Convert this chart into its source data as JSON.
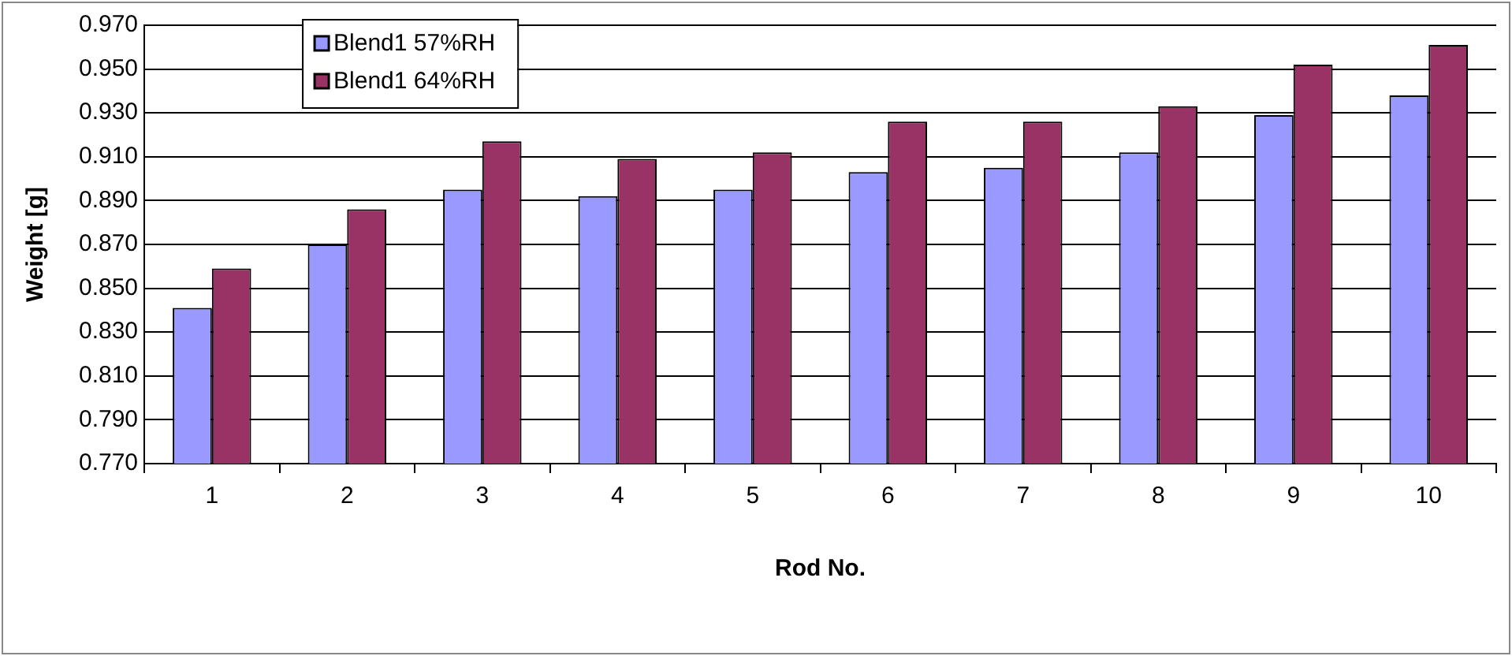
{
  "chart_data": {
    "type": "bar",
    "xlabel": "Rod No.",
    "ylabel": "Weight [g]",
    "categories": [
      "1",
      "2",
      "3",
      "4",
      "5",
      "6",
      "7",
      "8",
      "9",
      "10"
    ],
    "series": [
      {
        "name": "Blend1 57%RH",
        "color": "#9999ff",
        "values": [
          0.841,
          0.87,
          0.895,
          0.892,
          0.895,
          0.903,
          0.905,
          0.912,
          0.929,
          0.938
        ]
      },
      {
        "name": "Blend1 64%RH",
        "color": "#993366",
        "values": [
          0.859,
          0.886,
          0.917,
          0.909,
          0.912,
          0.926,
          0.926,
          0.933,
          0.952,
          0.961
        ]
      }
    ],
    "ylim": [
      0.77,
      0.97
    ],
    "yticks": [
      {
        "value": 0.77,
        "label": "0.770"
      },
      {
        "value": 0.79,
        "label": "0.790"
      },
      {
        "value": 0.81,
        "label": "0.810"
      },
      {
        "value": 0.83,
        "label": "0.830"
      },
      {
        "value": 0.85,
        "label": "0.850"
      },
      {
        "value": 0.87,
        "label": "0.870"
      },
      {
        "value": 0.89,
        "label": "0.890"
      },
      {
        "value": 0.91,
        "label": "0.910"
      },
      {
        "value": 0.93,
        "label": "0.930"
      },
      {
        "value": 0.95,
        "label": "0.950"
      },
      {
        "value": 0.97,
        "label": "0.970"
      }
    ],
    "grid": "y",
    "legend": "top left"
  }
}
